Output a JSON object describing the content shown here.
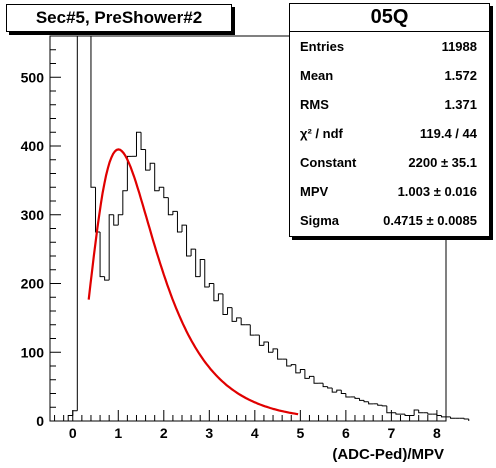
{
  "title_box": {
    "text": "Sec#5, PreShower#2"
  },
  "stats": {
    "header": "05Q",
    "rows": [
      {
        "label": "Entries",
        "value": "11988"
      },
      {
        "label": "Mean",
        "value": "1.572"
      },
      {
        "label": "RMS",
        "value": "1.371"
      },
      {
        "label": "χ² / ndf",
        "value": "119.4 / 44"
      },
      {
        "label": "Constant",
        "value": "2200 ± 35.1"
      },
      {
        "label": "MPV",
        "value": "1.003 ± 0.016"
      },
      {
        "label": "Sigma",
        "value": "0.4715 ± 0.0085"
      }
    ]
  },
  "chart_data": {
    "type": "histogram",
    "xlabel": "(ADC-Ped)/MPV",
    "ylabel": "",
    "xlim": [
      -0.5,
      8.2
    ],
    "ylim": [
      0,
      560
    ],
    "xticks": [
      0,
      1,
      2,
      3,
      4,
      5,
      6,
      7,
      8
    ],
    "yticks": [
      0,
      100,
      200,
      300,
      400,
      500
    ],
    "bin_width": 0.1,
    "bins_x_start": -0.5,
    "counts": [
      0,
      0,
      0,
      0,
      8,
      15,
      560,
      560,
      560,
      340,
      275,
      210,
      205,
      300,
      285,
      300,
      335,
      385,
      385,
      420,
      395,
      365,
      375,
      335,
      340,
      325,
      300,
      305,
      275,
      285,
      240,
      250,
      210,
      235,
      195,
      200,
      175,
      185,
      155,
      165,
      145,
      150,
      140,
      140,
      125,
      125,
      110,
      115,
      100,
      105,
      90,
      90,
      80,
      82,
      70,
      75,
      62,
      65,
      55,
      55,
      50,
      48,
      42,
      45,
      40,
      35,
      35,
      33,
      30,
      28,
      25,
      25,
      23,
      22,
      12,
      12,
      10,
      10,
      8,
      8,
      16,
      12,
      12,
      10,
      10,
      8,
      6,
      6,
      4,
      4,
      4,
      3
    ],
    "fit": {
      "name": "Landau",
      "color": "#e00000",
      "constant": 2200,
      "mpv": 1.003,
      "sigma": 0.4715,
      "x_range": [
        0.35,
        4.95
      ]
    },
    "colors": {
      "histogram": "#000000",
      "fit": "#e00000"
    }
  }
}
